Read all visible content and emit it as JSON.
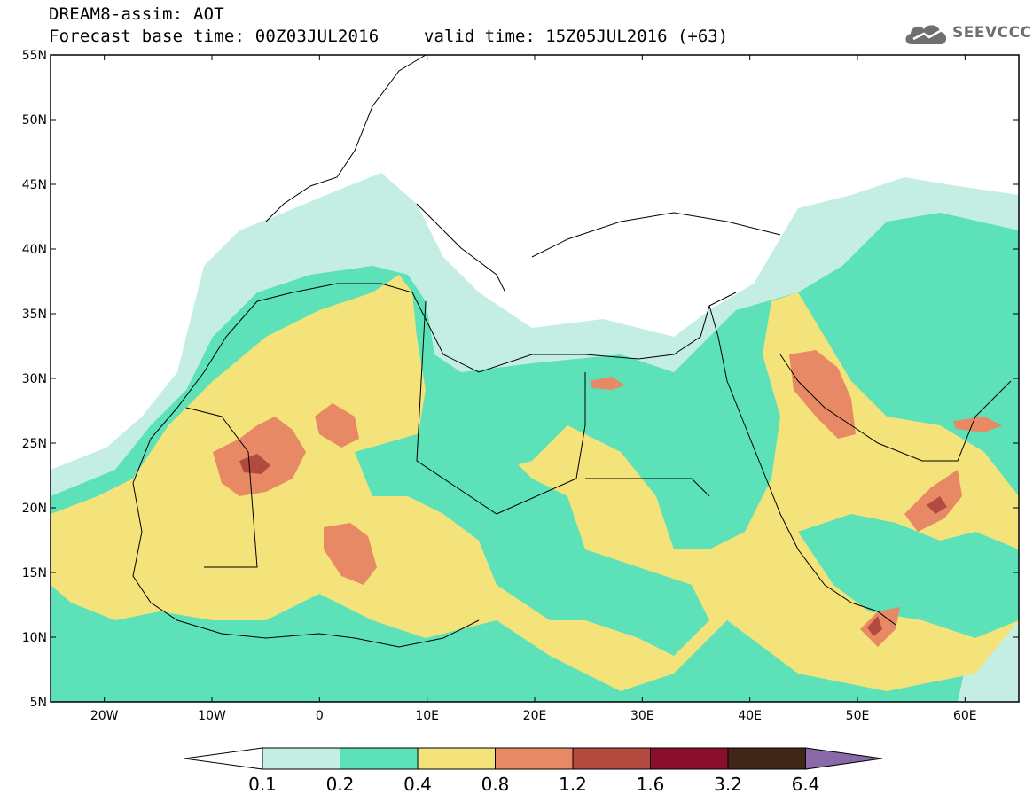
{
  "header": {
    "title": "DREAM8-assim: AOT",
    "base_time": "Forecast base time: 00Z03JUL2016",
    "valid_time": "valid time: 15Z05JUL2016 (+63)"
  },
  "logo": {
    "text": "SEEVCCC",
    "icon": "cloud-icon"
  },
  "map": {
    "lat_labels": [
      "55N",
      "50N",
      "45N",
      "40N",
      "35N",
      "30N",
      "25N",
      "20N",
      "15N",
      "10N",
      "5N"
    ],
    "lon_labels": [
      "20W",
      "10W",
      "0",
      "10E",
      "20E",
      "30E",
      "40E",
      "50E",
      "60E"
    ],
    "lat_range": [
      5,
      55
    ],
    "lon_range": [
      -25,
      65
    ]
  },
  "colorbar": {
    "labels": [
      "0.1",
      "0.2",
      "0.4",
      "0.8",
      "1.2",
      "1.6",
      "3.2",
      "6.4"
    ],
    "colors": [
      "#c4eee3",
      "#5ce1b9",
      "#f4e27a",
      "#e88965",
      "#b24a3f",
      "#8a0f2d",
      "#3f2616",
      "#8a69a8"
    ]
  },
  "legend_colors": {
    "aot_01": "#c4eee3",
    "aot_02": "#5ce1b9",
    "aot_04": "#f4e27a",
    "aot_08": "#e88965",
    "aot_12": "#b24a3f",
    "aot_16": "#8a0f2d"
  }
}
